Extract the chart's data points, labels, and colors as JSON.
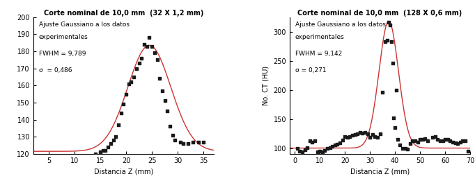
{
  "plot1": {
    "title": "Corte nominal de 10,0 mm  (32 X 1,2 mm)",
    "xlabel": "Distancia Z (mm)",
    "ylabel": "",
    "xlim": [
      2,
      37
    ],
    "ylim": [
      120,
      200
    ],
    "yticks": [
      120,
      130,
      140,
      150,
      160,
      170,
      180,
      190,
      200
    ],
    "xticks": [
      5,
      10,
      15,
      20,
      25,
      30,
      35
    ],
    "annotation_line1": "Ajuste Gaussiano a los datos",
    "annotation_line2": "experimentales",
    "fwhm_label": "FWHM = 9,789",
    "sigma_label": "σ  = 0,486",
    "gauss_mu": 24.5,
    "gauss_sigma": 4.16,
    "gauss_amplitude": 62.0,
    "gauss_baseline": 121.5,
    "scatter_x": [
      14.0,
      15.0,
      15.5,
      16.0,
      16.5,
      17.0,
      17.5,
      18.0,
      18.5,
      19.0,
      19.5,
      20.0,
      20.5,
      21.0,
      21.5,
      22.0,
      22.5,
      23.0,
      23.5,
      24.0,
      24.5,
      25.0,
      25.5,
      26.0,
      26.5,
      27.0,
      27.5,
      28.0,
      28.5,
      29.0,
      29.5,
      30.5,
      31.0,
      32.0,
      33.0,
      34.0,
      35.0
    ],
    "scatter_y": [
      120,
      121,
      122,
      122,
      124,
      126,
      128,
      130,
      137,
      144,
      149,
      155,
      161,
      162,
      165,
      170,
      173,
      176,
      184,
      183,
      188,
      183,
      179,
      175,
      164,
      157,
      151,
      145,
      136,
      131,
      128,
      127,
      126,
      126,
      127,
      127,
      127
    ],
    "scatter_color": "#1a1a1a",
    "line_color": "#cc3333"
  },
  "plot2": {
    "title": "Corte nominal de 10,0 mm  (128 X 0,6 mm)",
    "xlabel": "Distancia Z (mm)",
    "ylabel": "No. CT (HU)",
    "xlim": [
      -2,
      70
    ],
    "ylim": [
      90,
      325
    ],
    "yticks": [
      100,
      150,
      200,
      250,
      300
    ],
    "xticks": [
      0,
      10,
      20,
      30,
      40,
      50,
      60,
      70
    ],
    "annotation_line1": "Ajuste Gaussiano a los datos",
    "annotation_line2": "experimentales",
    "fwhm_label": "FWHM = 9,142",
    "sigma_label": "σ = 0,271",
    "gauss_mu": 37.5,
    "gauss_sigma": 3.88,
    "gauss_amplitude": 218.0,
    "gauss_baseline": 100.0,
    "scatter_x": [
      1.0,
      2.0,
      3.0,
      4.0,
      5.0,
      6.0,
      7.0,
      8.0,
      9.0,
      10.0,
      11.0,
      12.0,
      13.0,
      14.0,
      15.0,
      16.0,
      17.0,
      18.0,
      19.0,
      20.0,
      21.0,
      22.0,
      23.0,
      24.0,
      25.0,
      26.0,
      27.0,
      28.0,
      29.0,
      30.0,
      31.0,
      32.0,
      33.0,
      34.0,
      35.0,
      36.0,
      37.0,
      37.5,
      38.0,
      38.5,
      39.0,
      39.5,
      40.0,
      40.5,
      41.0,
      42.0,
      43.0,
      44.0,
      45.0,
      46.0,
      47.0,
      48.0,
      49.0,
      50.0,
      51.0,
      52.0,
      53.0,
      55.0,
      56.0,
      57.0,
      58.0,
      59.0,
      60.0,
      61.0,
      62.0,
      63.0,
      64.0,
      65.0,
      66.0,
      67.0,
      68.0,
      69.0
    ],
    "scatter_y": [
      100,
      95,
      93,
      97,
      101,
      112,
      110,
      112,
      94,
      95,
      94,
      96,
      99,
      101,
      103,
      105,
      107,
      109,
      114,
      120,
      118,
      120,
      122,
      123,
      125,
      127,
      126,
      127,
      125,
      118,
      123,
      120,
      118,
      125,
      196,
      283,
      285,
      316,
      311,
      283,
      246,
      152,
      135,
      200,
      115,
      105,
      100,
      100,
      98,
      108,
      112,
      112,
      110,
      115,
      115,
      116,
      113,
      119,
      120,
      115,
      113,
      113,
      115,
      115,
      112,
      110,
      109,
      108,
      110,
      112,
      113,
      95
    ],
    "scatter_color": "#1a1a1a",
    "line_color": "#cc3333"
  }
}
